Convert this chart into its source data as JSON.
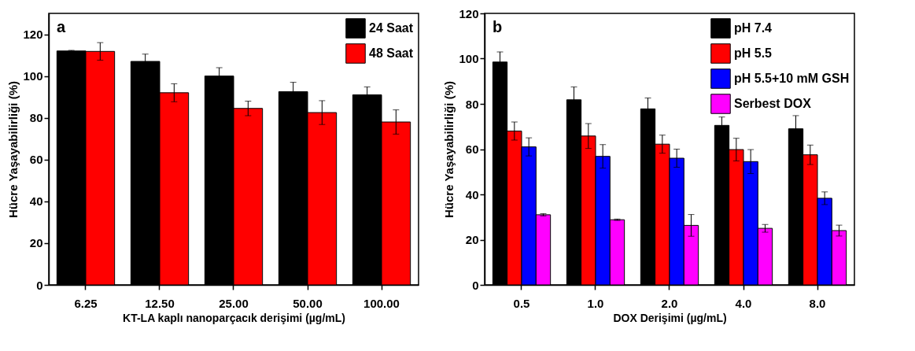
{
  "chart_data": [
    {
      "type": "bar",
      "annotations": [
        "a"
      ],
      "xlabel": "KT-LA kaplı  nanoparçacık derişimi (µg/mL)",
      "ylabel": "Hücre Yaşayabilirliği (%)",
      "categories": [
        "6.25",
        "12.50",
        "25.00",
        "50.00",
        "100.00"
      ],
      "ylim": [
        0,
        130
      ],
      "yticks": [
        0,
        20,
        40,
        60,
        80,
        100,
        120
      ],
      "legend": "top right",
      "series": [
        {
          "name": "24 Saat",
          "color": "#000000",
          "values": [
            112,
            107,
            100,
            92.5,
            91
          ],
          "errors": [
            0.3,
            3.5,
            4,
            4.5,
            3.8
          ]
        },
        {
          "name": "48 Saat",
          "color": "#ff0000",
          "values": [
            111.8,
            92,
            84.5,
            82.5,
            78
          ],
          "errors": [
            4.2,
            4.3,
            3.5,
            5.7,
            5.8
          ]
        }
      ]
    },
    {
      "type": "bar",
      "annotations": [
        "b"
      ],
      "xlabel": "DOX Derişimi (µg/mL)",
      "ylabel": "Hücre Yaşayabilirliği (%)",
      "categories": [
        "0.5",
        "1.0",
        "2.0",
        "4.0",
        "8.0"
      ],
      "ylim": [
        0,
        120
      ],
      "yticks": [
        0,
        20,
        40,
        60,
        80,
        100,
        120
      ],
      "legend": "top right",
      "series": [
        {
          "name": "pH 7.4",
          "color": "#000000",
          "values": [
            98.5,
            81.8,
            77.8,
            70.5,
            69
          ],
          "errors": [
            4.5,
            5.7,
            4.8,
            3.7,
            5.8
          ]
        },
        {
          "name": "pH 5.5",
          "color": "#ff0000",
          "values": [
            68,
            65.8,
            62.2,
            59.8,
            57.5
          ],
          "errors": [
            4,
            5.5,
            4,
            5,
            4.3
          ]
        },
        {
          "name": "pH 5.5+10 mM GSH",
          "color": "#0000ff",
          "values": [
            61,
            56.8,
            56,
            54.5,
            38.3
          ],
          "errors": [
            4,
            5.2,
            4,
            5.3,
            2.8
          ]
        },
        {
          "name": "Serbest DOX",
          "color": "#ff00ff",
          "values": [
            31,
            28.8,
            26.3,
            25,
            24
          ],
          "errors": [
            0.5,
            0.3,
            4.8,
            1.7,
            2.4
          ]
        }
      ]
    }
  ]
}
